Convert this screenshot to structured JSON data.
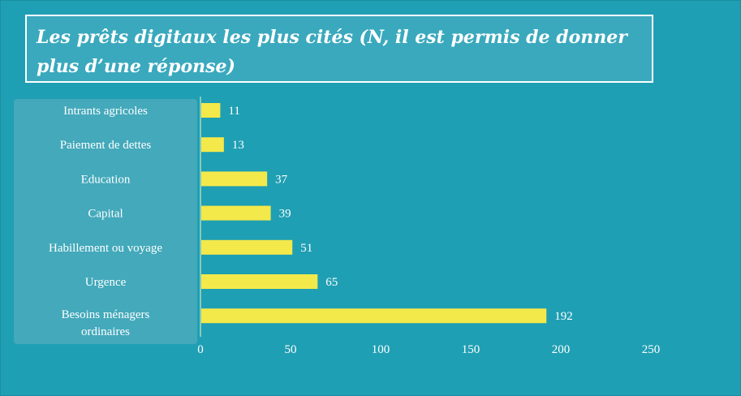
{
  "title": "Les prêts digitaux les plus cités (N, il est permis de donner plus d’une réponse)",
  "chart_data": {
    "type": "bar",
    "orientation": "horizontal",
    "categories": [
      "Intrants agricoles",
      "Paiement de dettes",
      "Education",
      "Capital",
      "Habillement ou voyage",
      "Urgence",
      "Besoins ménagers ordinaires"
    ],
    "values": [
      11,
      13,
      37,
      39,
      51,
      65,
      192
    ],
    "data_labels": [
      "11",
      "13",
      "37",
      "39",
      "51",
      "65",
      "192"
    ],
    "xlim": [
      0,
      250
    ],
    "xticks": [
      "0",
      "50",
      "100",
      "150",
      "200",
      "250"
    ],
    "grid": false,
    "bar_color": "#f4e94a",
    "background_color": "#1f9fb3",
    "text_color": "#ffffff"
  }
}
